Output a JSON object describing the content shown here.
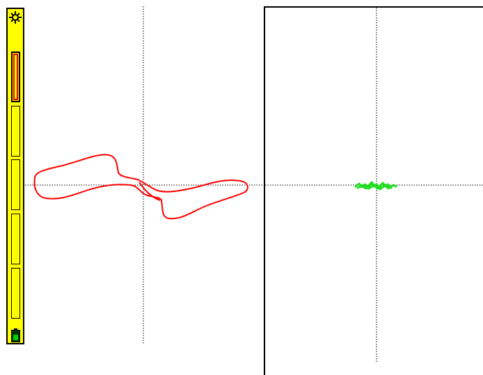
{
  "sidebar": {
    "background_color": "#ffff00",
    "top_icon": "gear-icon",
    "channel_slots": [
      {
        "active": true,
        "highlight_color": "#ff0000"
      },
      {
        "active": false
      },
      {
        "active": false
      },
      {
        "active": false
      },
      {
        "active": false
      }
    ],
    "bottom_icon": "battery-icon",
    "battery_level": 0.6,
    "battery_color": "#00cc00"
  },
  "left_display": {
    "trace_color": "#ff0000",
    "trace_shape": "figure-eight loop crossing centre",
    "crosshair": "dotted"
  },
  "right_display": {
    "trace_color": "#22dd22",
    "trace_shape": "small horizontal scribble at centre",
    "crosshair": "dotted",
    "framed": true
  }
}
